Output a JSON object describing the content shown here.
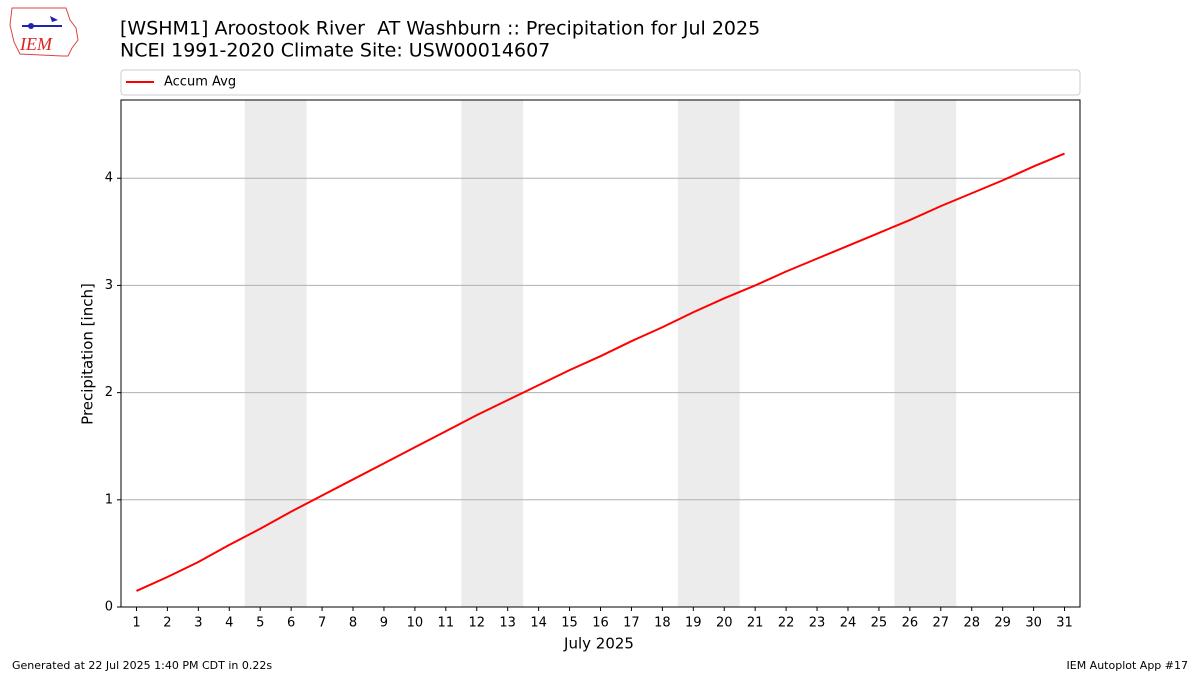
{
  "logo": {
    "text": "IEM"
  },
  "footer": {
    "left": "Generated at 22 Jul 2025 1:40 PM CDT in 0.22s",
    "right": "IEM Autoplot App #17"
  },
  "chart_data": {
    "type": "line",
    "title": "[WSHM1] Aroostook River  AT Washburn :: Precipitation for Jul 2025",
    "subtitle": "NCEI 1991-2020 Climate Site: USW00014607",
    "xlabel": "July 2025",
    "ylabel": "Precipitation [inch]",
    "x": [
      1,
      2,
      3,
      4,
      5,
      6,
      7,
      8,
      9,
      10,
      11,
      12,
      13,
      14,
      15,
      16,
      17,
      18,
      19,
      20,
      21,
      22,
      23,
      24,
      25,
      26,
      27,
      28,
      29,
      30,
      31
    ],
    "series": [
      {
        "name": "Accum Avg",
        "color": "#ff0000",
        "values": [
          0.15,
          0.28,
          0.42,
          0.58,
          0.73,
          0.89,
          1.04,
          1.19,
          1.34,
          1.49,
          1.64,
          1.79,
          1.93,
          2.07,
          2.21,
          2.34,
          2.48,
          2.61,
          2.75,
          2.88,
          3.0,
          3.13,
          3.25,
          3.37,
          3.49,
          3.61,
          3.74,
          3.86,
          3.98,
          4.11,
          4.23
        ]
      }
    ],
    "weekend_spans": [
      [
        4.5,
        6.5
      ],
      [
        11.5,
        13.5
      ],
      [
        18.5,
        20.5
      ],
      [
        25.5,
        27.5
      ]
    ],
    "shade_color": "#ececec",
    "xlim": [
      0.5,
      31.5
    ],
    "ylim": [
      0,
      4.73
    ],
    "xticks": [
      1,
      2,
      3,
      4,
      5,
      6,
      7,
      8,
      9,
      10,
      11,
      12,
      13,
      14,
      15,
      16,
      17,
      18,
      19,
      20,
      21,
      22,
      23,
      24,
      25,
      26,
      27,
      28,
      29,
      30,
      31
    ],
    "yticks": [
      0,
      1,
      2,
      3,
      4
    ],
    "grid": true,
    "legend": "top"
  }
}
